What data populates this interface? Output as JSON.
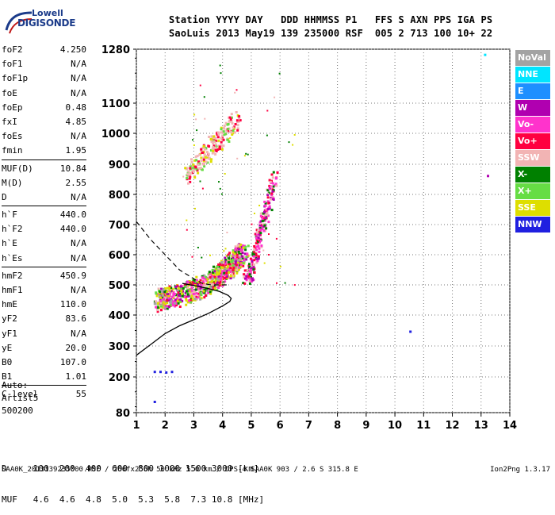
{
  "logo": {
    "line1": "Lowell",
    "line2": "DIGISONDE"
  },
  "header": {
    "row1": "Station YYYY DAY   DDD HHMMSS P1   FFS S AXN PPS IGA PS",
    "row2": "SaoLuis 2013 May19 139 235000 RSF  005 2 713 100 10+ 22"
  },
  "params": {
    "group1": [
      {
        "k": "foF2",
        "v": "4.250"
      },
      {
        "k": "foF1",
        "v": "N/A"
      },
      {
        "k": "foF1p",
        "v": "N/A"
      },
      {
        "k": "foE",
        "v": "N/A"
      },
      {
        "k": "foEp",
        "v": "0.48"
      },
      {
        "k": "fxI",
        "v": "4.85"
      },
      {
        "k": "foEs",
        "v": "N/A"
      },
      {
        "k": "fmin",
        "v": "1.95"
      }
    ],
    "group2": [
      {
        "k": "MUF(D)",
        "v": "10.84"
      },
      {
        "k": "M(D)",
        "v": "2.55"
      },
      {
        "k": "D",
        "v": "N/A"
      }
    ],
    "group3": [
      {
        "k": "h`F",
        "v": "440.0"
      },
      {
        "k": "h`F2",
        "v": "440.0"
      },
      {
        "k": "h`E",
        "v": "N/A"
      },
      {
        "k": "h`Es",
        "v": "N/A"
      }
    ],
    "group4": [
      {
        "k": "hmF2",
        "v": "450.9"
      },
      {
        "k": "hmF1",
        "v": "N/A"
      },
      {
        "k": "hmE",
        "v": "110.0"
      },
      {
        "k": "yF2",
        "v": "83.6"
      },
      {
        "k": "yF1",
        "v": "N/A"
      },
      {
        "k": "yE",
        "v": "20.0"
      },
      {
        "k": "B0",
        "v": "107.0"
      },
      {
        "k": "B1",
        "v": "1.01"
      }
    ],
    "group5": [
      {
        "k": "C-level",
        "v": "55"
      }
    ]
  },
  "auto": {
    "l1": "Auto:",
    "l2": "Artist5",
    "l3": "500200"
  },
  "legend": [
    {
      "label": "NoVal",
      "color": "#a3a3a3"
    },
    {
      "label": "NNE",
      "color": "#00e5ff"
    },
    {
      "label": "E",
      "color": "#1e8fff"
    },
    {
      "label": "W",
      "color": "#b000b0"
    },
    {
      "label": "Vo-",
      "color": "#ff33cc"
    },
    {
      "label": "Vo+",
      "color": "#ff0040"
    },
    {
      "label": "SSW",
      "color": "#f2b4b4"
    },
    {
      "label": "X-",
      "color": "#008000"
    },
    {
      "label": "X+",
      "color": "#66dd44"
    },
    {
      "label": "SSE",
      "color": "#dede00"
    },
    {
      "label": "NNW",
      "color": "#2020e0"
    }
  ],
  "muf_table": {
    "row1": "D     100  200  400  600  800 1000 1500 3000 [km]",
    "row2": "MUF   4.6  4.6  4.8  5.0  5.3  5.8  7.3 10.8 [MHz]"
  },
  "footer": {
    "left": "SAA0K_2013139235000.RSF / 260fx256h 50 kHz 5.0 km / DPS-4 SAA0K 903 / 2.6 S 315.8 E",
    "right": "Ion2Png 1.3.17"
  },
  "chart_data": {
    "type": "scatter",
    "xlabel": "",
    "ylabel": "",
    "xlim": [
      1,
      14
    ],
    "ylim": [
      80,
      1280
    ],
    "x_ticks": [
      1,
      2,
      3,
      4,
      5,
      6,
      7,
      8,
      9,
      10,
      11,
      12,
      13,
      14
    ],
    "y_ticks": [
      80,
      200,
      300,
      400,
      500,
      600,
      700,
      800,
      900,
      1000,
      1100,
      1280
    ],
    "profile_curve": {
      "name": "",
      "x": [
        1.0,
        1.5,
        2.0,
        2.5,
        3.0,
        3.5,
        4.0,
        4.25,
        4.3,
        4.2,
        3.9,
        3.5,
        3.0,
        2.6
      ],
      "y": [
        270,
        305,
        340,
        365,
        385,
        405,
        430,
        445,
        455,
        465,
        478,
        488,
        498,
        505
      ]
    },
    "dashed_curve": {
      "x": [
        1.0,
        1.5,
        2.0,
        2.5,
        3.0,
        3.3,
        3.6,
        3.9,
        4.2
      ],
      "y": [
        710,
        650,
        600,
        550,
        520,
        505,
        500,
        500,
        500
      ]
    },
    "traces": [
      {
        "name": "O-trace",
        "x": [
          1.7,
          2.0,
          2.5,
          3.0,
          3.5,
          3.8,
          4.0,
          4.3,
          4.5,
          4.7
        ],
        "y": [
          450,
          460,
          470,
          485,
          510,
          530,
          545,
          570,
          590,
          610
        ]
      },
      {
        "name": "X-trace",
        "x": [
          4.8,
          5.0,
          5.2,
          5.4,
          5.6,
          5.8
        ],
        "y": [
          520,
          560,
          640,
          720,
          790,
          870
        ]
      },
      {
        "name": "multihop",
        "x": [
          2.7,
          3.0,
          3.3,
          3.6,
          3.9,
          4.2,
          4.5
        ],
        "y": [
          860,
          900,
          930,
          960,
          990,
          1020,
          1050
        ]
      }
    ],
    "scatter_points": [
      {
        "x": 1.6,
        "y": 220,
        "c": "NNW"
      },
      {
        "x": 1.8,
        "y": 220,
        "c": "NNW"
      },
      {
        "x": 2.0,
        "y": 218,
        "c": "NNW"
      },
      {
        "x": 2.2,
        "y": 220,
        "c": "NNW"
      },
      {
        "x": 1.6,
        "y": 120,
        "c": "NNW"
      },
      {
        "x": 10.5,
        "y": 350,
        "c": "NNW"
      },
      {
        "x": 13.2,
        "y": 865,
        "c": "W"
      },
      {
        "x": 13.1,
        "y": 1265,
        "c": "NNE"
      }
    ]
  }
}
